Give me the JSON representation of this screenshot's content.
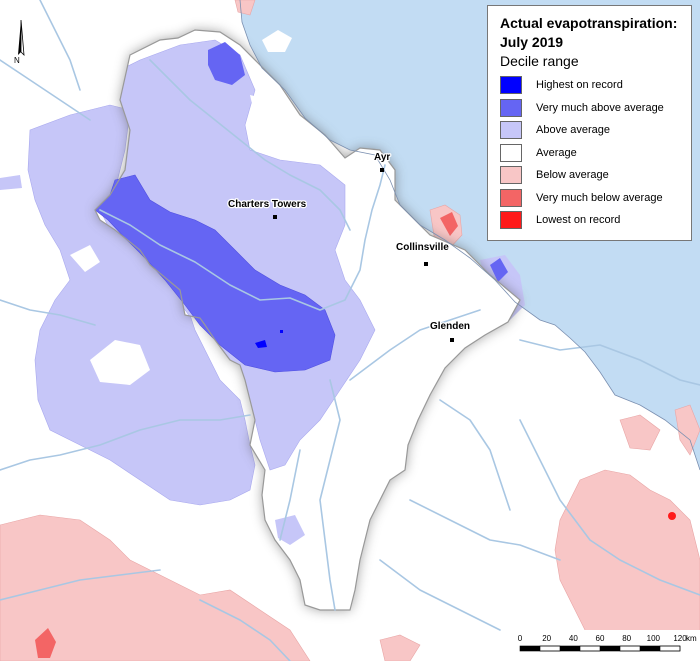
{
  "legend": {
    "title_line1": "Actual evapotranspiration:",
    "title_line2": "July 2019",
    "subtitle": "Decile range",
    "items": [
      {
        "label": "Highest on record",
        "color": "#0000ff"
      },
      {
        "label": "Very much above average",
        "color": "#6565f3"
      },
      {
        "label": "Above average",
        "color": "#c6c6f8"
      },
      {
        "label": "Average",
        "color": "#ffffff"
      },
      {
        "label": "Below average",
        "color": "#f8c6c6"
      },
      {
        "label": "Very much below average",
        "color": "#f36565"
      },
      {
        "label": "Lowest on record",
        "color": "#ff1a1a"
      }
    ]
  },
  "towns": {
    "ayr": "Ayr",
    "charters_towers": "Charters Towers",
    "collinsville": "Collinsville",
    "glenden": "Glenden"
  },
  "north_arrow": {
    "label": "N"
  },
  "scale_bar": {
    "ticks": [
      "0",
      "20",
      "40",
      "60",
      "80",
      "100",
      "120"
    ],
    "unit": "km"
  },
  "colors": {
    "sea": "#c2dcf3",
    "river": "#a9c7e3",
    "basin_outline": "#999999"
  }
}
